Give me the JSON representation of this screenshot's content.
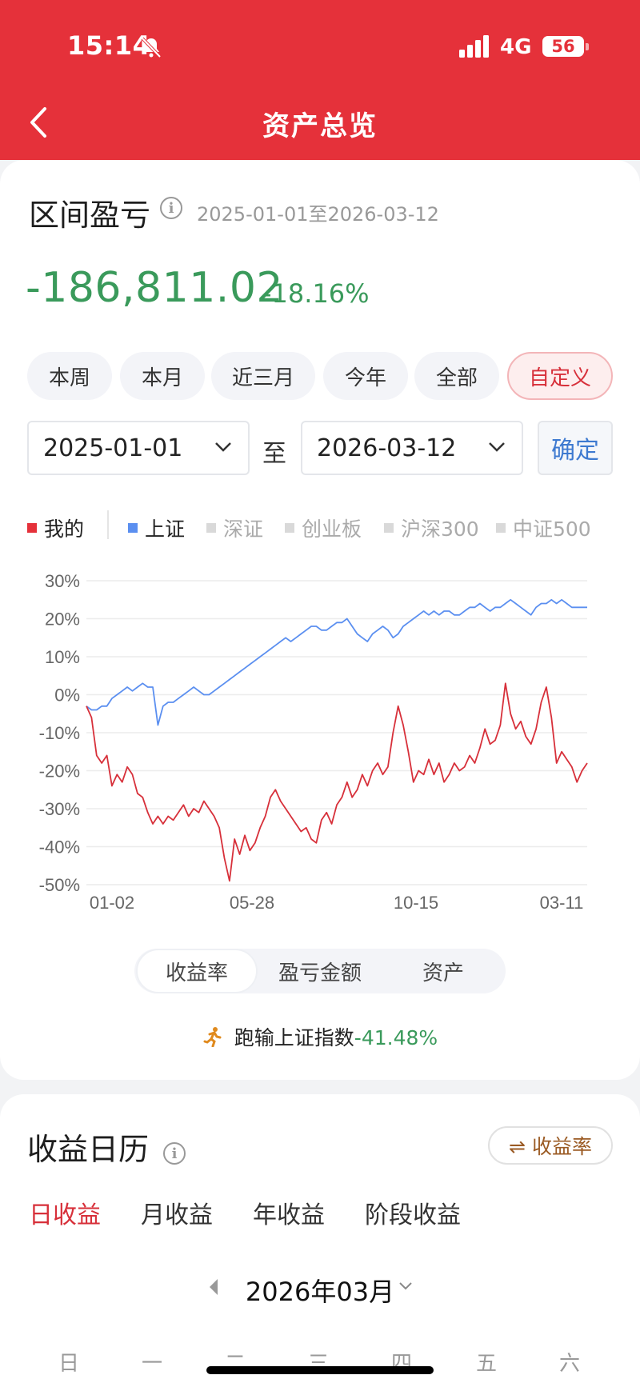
{
  "status_bar": {
    "time": "15:14",
    "network": "4G",
    "battery": "56"
  },
  "nav": {
    "title": "资产总览"
  },
  "pnl": {
    "title": "区间盈亏",
    "range": "2025-01-01至2026-03-12",
    "amount": "-186,811.02",
    "percent": "-18.16%"
  },
  "periods": [
    "本周",
    "本月",
    "近三月",
    "今年",
    "全部",
    "自定义"
  ],
  "active_period": "自定义",
  "date_picker": {
    "start": "2025-01-01",
    "to_label": "至",
    "end": "2026-03-12",
    "confirm": "确定"
  },
  "legend": [
    {
      "label": "我的",
      "color": "#e5313a",
      "active": true
    },
    {
      "label": "上证",
      "color": "#5b8ff0",
      "active": true
    },
    {
      "label": "深证",
      "color": "#d9d9d9",
      "active": false
    },
    {
      "label": "创业板",
      "color": "#d9d9d9",
      "active": false
    },
    {
      "label": "沪深300",
      "color": "#d9d9d9",
      "active": false
    },
    {
      "label": "中证500",
      "color": "#d9d9d9",
      "active": false
    }
  ],
  "chart_data": {
    "type": "line",
    "x_tick_labels": [
      "01-02",
      "05-28",
      "10-15",
      "03-11"
    ],
    "y_tick_labels": [
      "30%",
      "20%",
      "10%",
      "0%",
      "-10%",
      "-20%",
      "-30%",
      "-40%",
      "-50%"
    ],
    "ylim": [
      -50,
      30
    ],
    "grid": true,
    "series": [
      {
        "name": "我的",
        "color": "#d7303a",
        "values": [
          -3,
          -6,
          -16,
          -18,
          -16,
          -24,
          -21,
          -23,
          -19,
          -21,
          -26,
          -27,
          -31,
          -34,
          -32,
          -34,
          -32,
          -33,
          -31,
          -29,
          -32,
          -30,
          -31,
          -28,
          -30,
          -32,
          -35,
          -43,
          -49,
          -38,
          -42,
          -37,
          -41,
          -39,
          -35,
          -32,
          -27,
          -25,
          -28,
          -30,
          -32,
          -34,
          -36,
          -35,
          -38,
          -39,
          -33,
          -31,
          -34,
          -29,
          -27,
          -23,
          -27,
          -25,
          -21,
          -24,
          -20,
          -18,
          -21,
          -19,
          -10,
          -3,
          -8,
          -15,
          -23,
          -20,
          -21,
          -17,
          -21,
          -18,
          -23,
          -21,
          -18,
          -20,
          -19,
          -16,
          -18,
          -14,
          -9,
          -13,
          -12,
          -8,
          3,
          -5,
          -9,
          -7,
          -11,
          -13,
          -9,
          -2,
          2,
          -6,
          -18,
          -15,
          -17,
          -19,
          -23,
          -20,
          -18
        ]
      },
      {
        "name": "上证",
        "color": "#5b8ff0",
        "values": [
          -3,
          -4,
          -4,
          -3,
          -3,
          -1,
          0,
          1,
          2,
          1,
          2,
          3,
          2,
          2,
          -8,
          -3,
          -2,
          -2,
          -1,
          0,
          1,
          2,
          1,
          0,
          0,
          1,
          2,
          3,
          4,
          5,
          6,
          7,
          8,
          9,
          10,
          11,
          12,
          13,
          14,
          15,
          14,
          15,
          16,
          17,
          18,
          18,
          17,
          17,
          18,
          19,
          19,
          20,
          18,
          16,
          15,
          14,
          16,
          17,
          18,
          17,
          15,
          16,
          18,
          19,
          20,
          21,
          22,
          21,
          22,
          21,
          22,
          22,
          21,
          21,
          22,
          23,
          23,
          24,
          23,
          22,
          23,
          23,
          24,
          25,
          24,
          23,
          22,
          21,
          23,
          24,
          24,
          25,
          24,
          25,
          24,
          23,
          23,
          23,
          23
        ]
      }
    ]
  },
  "chart_modes": [
    "收益率",
    "盈亏金额",
    "资产"
  ],
  "active_mode": "收益率",
  "comparison": {
    "prefix": "跑输上证指数",
    "value": "-41.48%"
  },
  "calendar": {
    "title": "收益日历",
    "toggle_label": "⇌ 收益率",
    "tabs": [
      "日收益",
      "月收益",
      "年收益",
      "阶段收益"
    ],
    "active_tab": "日收益",
    "month": "2026年03月",
    "weekdays": [
      "日",
      "一",
      "二",
      "三",
      "四",
      "五",
      "六"
    ]
  }
}
